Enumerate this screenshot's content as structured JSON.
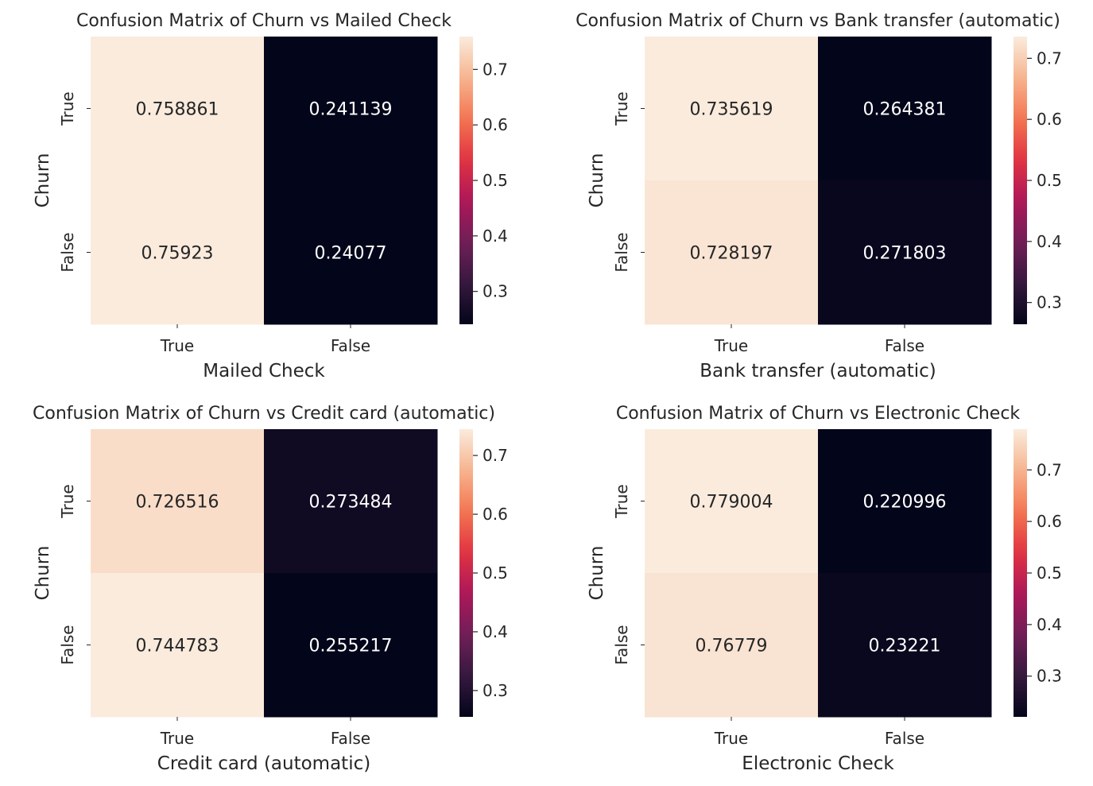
{
  "chart_data": [
    {
      "type": "heatmap",
      "title": "Confusion Matrix of Churn vs Mailed Check",
      "xlabel": "Mailed Check",
      "ylabel": "Churn",
      "x_categories": [
        "True",
        "False"
      ],
      "y_categories": [
        "True",
        "False"
      ],
      "values": [
        [
          0.758861,
          0.241139
        ],
        [
          0.75923,
          0.24077
        ]
      ],
      "value_labels": [
        [
          "0.758861",
          "0.241139"
        ],
        [
          "0.75923",
          "0.24077"
        ]
      ],
      "colorbar": {
        "range": [
          0.24077,
          0.75923
        ],
        "ticks": [
          0.3,
          0.4,
          0.5,
          0.6,
          0.7
        ],
        "tick_labels": [
          "0.3",
          "0.4",
          "0.5",
          "0.6",
          "0.7"
        ]
      }
    },
    {
      "type": "heatmap",
      "title": "Confusion Matrix of Churn vs Bank transfer (automatic)",
      "xlabel": "Bank transfer (automatic)",
      "ylabel": "Churn",
      "x_categories": [
        "True",
        "False"
      ],
      "y_categories": [
        "True",
        "False"
      ],
      "values": [
        [
          0.735619,
          0.264381
        ],
        [
          0.728197,
          0.271803
        ]
      ],
      "value_labels": [
        [
          "0.735619",
          "0.264381"
        ],
        [
          "0.728197",
          "0.271803"
        ]
      ],
      "colorbar": {
        "range": [
          0.264381,
          0.735619
        ],
        "ticks": [
          0.3,
          0.4,
          0.5,
          0.6,
          0.7
        ],
        "tick_labels": [
          "0.3",
          "0.4",
          "0.5",
          "0.6",
          "0.7"
        ]
      }
    },
    {
      "type": "heatmap",
      "title": "Confusion Matrix of Churn vs Credit card (automatic)",
      "xlabel": "Credit card (automatic)",
      "ylabel": "Churn",
      "x_categories": [
        "True",
        "False"
      ],
      "y_categories": [
        "True",
        "False"
      ],
      "values": [
        [
          0.726516,
          0.273484
        ],
        [
          0.744783,
          0.255217
        ]
      ],
      "value_labels": [
        [
          "0.726516",
          "0.273484"
        ],
        [
          "0.744783",
          "0.255217"
        ]
      ],
      "colorbar": {
        "range": [
          0.255217,
          0.744783
        ],
        "ticks": [
          0.3,
          0.4,
          0.5,
          0.6,
          0.7
        ],
        "tick_labels": [
          "0.3",
          "0.4",
          "0.5",
          "0.6",
          "0.7"
        ]
      }
    },
    {
      "type": "heatmap",
      "title": "Confusion Matrix of Churn vs Electronic Check",
      "xlabel": "Electronic Check",
      "ylabel": "Churn",
      "x_categories": [
        "True",
        "False"
      ],
      "y_categories": [
        "True",
        "False"
      ],
      "values": [
        [
          0.779004,
          0.220996
        ],
        [
          0.76779,
          0.23221
        ]
      ],
      "value_labels": [
        [
          "0.779004",
          "0.220996"
        ],
        [
          "0.76779",
          "0.23221"
        ]
      ],
      "colorbar": {
        "range": [
          0.220996,
          0.779004
        ],
        "ticks": [
          0.3,
          0.4,
          0.5,
          0.6,
          0.7
        ],
        "tick_labels": [
          "0.3",
          "0.4",
          "0.5",
          "0.6",
          "0.7"
        ]
      }
    }
  ],
  "colormap": {
    "name": "rocket",
    "stops": [
      "#03051a",
      "#35193e",
      "#701f57",
      "#ad1759",
      "#e13342",
      "#f37651",
      "#f6b48f",
      "#faebdd"
    ]
  }
}
